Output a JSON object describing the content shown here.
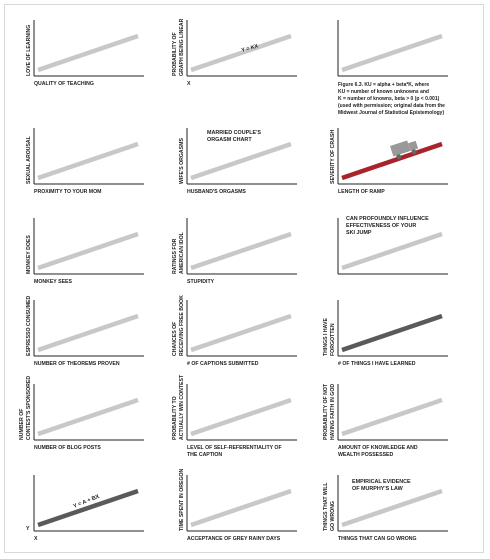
{
  "colors": {
    "axis": "#222222",
    "line_light": "#c8c8c8",
    "line_dark": "#5a5a5a",
    "line_red": "#a8232b",
    "truck": "#999999"
  },
  "chart_data": [
    {
      "type": "line",
      "xlabel": "QUALITY OF TEACHING",
      "ylabel": [
        "LOVE OF LEARNING"
      ],
      "x": [
        0,
        1
      ],
      "y": [
        0,
        1
      ],
      "line_color": "light"
    },
    {
      "type": "line",
      "xlabel": "X",
      "ylabel": [
        "PROBABILITY OF",
        "GRAPH BEING LINEAR"
      ],
      "x": [
        0,
        1
      ],
      "y": [
        0,
        1
      ],
      "line_color": "light",
      "annotations": [
        "Y = KX"
      ]
    },
    {
      "type": "line",
      "xlabel": "",
      "ylabel": [],
      "x": [
        0,
        1
      ],
      "y": [
        0,
        1
      ],
      "line_color": "light",
      "annotations": [
        "Figure 6.3. KU = alpha + beta*K, where",
        "KU = number of known unknowns and",
        "K = number of knowns, beta > 0 (p < 0.001)",
        "(used with permission; original data from the",
        "Midwest Journal of Statistical Epistemology)"
      ]
    },
    {
      "type": "line",
      "xlabel": "PROXIMITY TO YOUR MOM",
      "ylabel": [
        "SEXUAL AROUSAL"
      ],
      "x": [
        0,
        1
      ],
      "y": [
        0,
        1
      ],
      "line_color": "light"
    },
    {
      "type": "line",
      "xlabel": "HUSBAND'S ORGASMS",
      "ylabel": [
        "WIFE'S ORGASMS"
      ],
      "x": [
        0,
        1
      ],
      "y": [
        0,
        1
      ],
      "line_color": "light",
      "annotations": [
        "MARRIED COUPLE'S",
        "ORGASM CHART"
      ]
    },
    {
      "type": "line",
      "xlabel": "LENGTH OF RAMP",
      "ylabel": [
        "SEVERITY OF CRASH"
      ],
      "x": [
        0,
        1
      ],
      "y": [
        0,
        1
      ],
      "line_color": "red",
      "icon": "truck-icon"
    },
    {
      "type": "line",
      "xlabel": "MONKEY SEES",
      "ylabel": [
        "MONKEY DOES"
      ],
      "x": [
        0,
        1
      ],
      "y": [
        0,
        1
      ],
      "line_color": "light"
    },
    {
      "type": "line",
      "xlabel": "STUPIDITY",
      "ylabel": [
        "RATINGS FOR",
        "AMERICAN IDOL"
      ],
      "x": [
        0,
        1
      ],
      "y": [
        0,
        1
      ],
      "line_color": "light"
    },
    {
      "type": "line",
      "xlabel": "",
      "ylabel": [],
      "x": [
        0,
        1
      ],
      "y": [
        0,
        1
      ],
      "line_color": "light",
      "annotations": [
        "CAN PROFOUNDLY INFLUENCE",
        "EFFECTIVENESS OF YOUR",
        "SKI JUMP"
      ]
    },
    {
      "type": "line",
      "xlabel": "NUMBER OF THEOREMS PROVEN",
      "ylabel": [
        "ESPRESSO CONSUMED"
      ],
      "x": [
        0,
        1
      ],
      "y": [
        0,
        1
      ],
      "line_color": "light"
    },
    {
      "type": "line",
      "xlabel": "# OF CAPTIONS SUBMITTED",
      "ylabel": [
        "CHANCES OF",
        "RECEIVING FREE BOOK"
      ],
      "x": [
        0,
        1
      ],
      "y": [
        0,
        1
      ],
      "line_color": "light"
    },
    {
      "type": "line",
      "xlabel": "# OF THINGS I HAVE LEARNED",
      "ylabel": [
        "THINGS I HAVE",
        "FORGOTTEN"
      ],
      "x": [
        0,
        1
      ],
      "y": [
        0,
        1
      ],
      "line_color": "dark"
    },
    {
      "type": "line",
      "xlabel": "NUMBER OF BLOG POSTS",
      "ylabel": [
        "NUMBER OF",
        "CONTEST'S SPONSORED"
      ],
      "x": [
        0,
        1
      ],
      "y": [
        0,
        1
      ],
      "line_color": "light"
    },
    {
      "type": "line",
      "xlabel": [
        "LEVEL OF SELF-REFERENTIALITY OF",
        "THE CAPTION"
      ],
      "ylabel": [
        "PROBABILITY TO",
        "ACTUALLY WIN CONTEST"
      ],
      "x": [
        0,
        1
      ],
      "y": [
        0,
        1
      ],
      "line_color": "light"
    },
    {
      "type": "line",
      "xlabel": [
        "AMOUNT OF KNOWLEDGE AND",
        "WEALTH POSSESSED"
      ],
      "ylabel": [
        "PROBABILITY OF NOT",
        "HAVING FAITH IN GOD"
      ],
      "x": [
        0,
        1
      ],
      "y": [
        0,
        1
      ],
      "line_color": "light"
    },
    {
      "type": "line",
      "xlabel": "X",
      "ylabel": [
        "Y"
      ],
      "ylabel_horizontal": true,
      "x": [
        0,
        1
      ],
      "y": [
        0,
        1
      ],
      "line_color": "dark",
      "annotations": [
        "Y = A + BX"
      ]
    },
    {
      "type": "line",
      "xlabel": "ACCEPTANCE OF GREY RAINY DAYS",
      "ylabel": [
        "TIME SPENT IN OREGON"
      ],
      "x": [
        0,
        1
      ],
      "y": [
        0,
        1
      ],
      "line_color": "light"
    },
    {
      "type": "line",
      "xlabel": "THINGS THAT CAN GO WRONG",
      "ylabel": [
        "THINGS THAT WILL",
        "GO WRONG"
      ],
      "x": [
        0,
        1
      ],
      "y": [
        0,
        1
      ],
      "line_color": "light",
      "annotations": [
        "EMPIRICAL EVIDENCE",
        "OF MURPHY'S LAW"
      ]
    }
  ]
}
